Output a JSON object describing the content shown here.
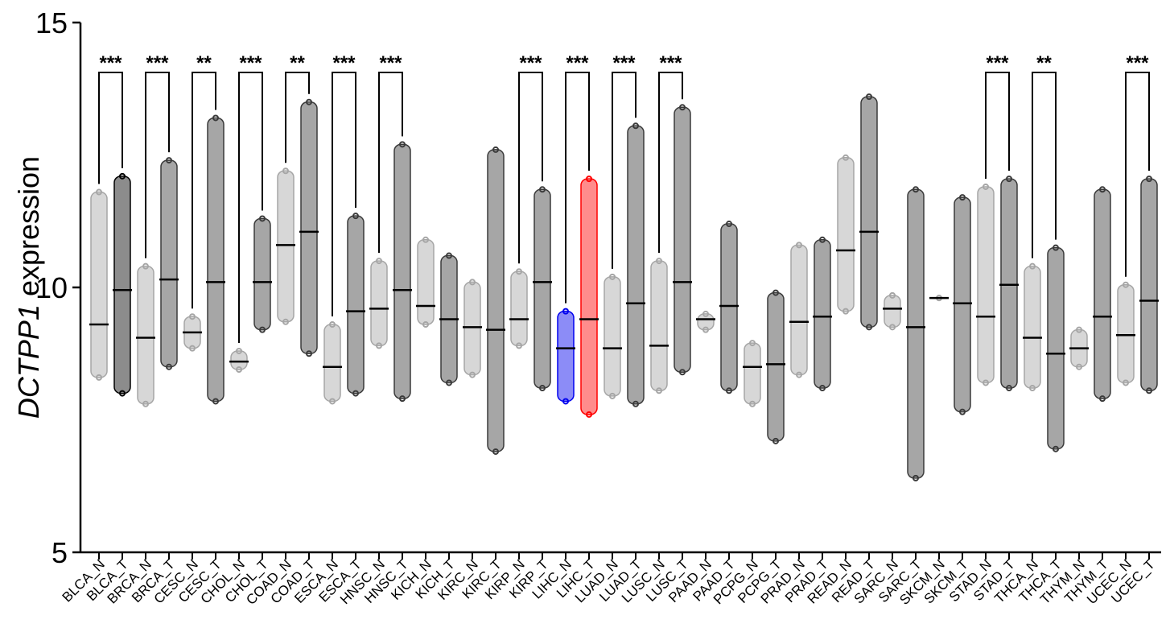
{
  "chart_data": {
    "type": "strip",
    "ylabel": [
      "DCTPP1",
      "expression"
    ],
    "categories": [
      "BLCA_N",
      "BLCA_T",
      "BRCA_N",
      "BRCA_T",
      "CESC_N",
      "CESC_T",
      "CHOL_N",
      "CHOL_T",
      "COAD_N",
      "COAD_T",
      "ESCA_N",
      "ESCA_T",
      "HNSC_N",
      "HNSC_T",
      "KICH_N",
      "KICH_T",
      "KIRC_N",
      "KIRC_T",
      "KIRP_N",
      "KIRP_T",
      "LIHC_N",
      "LIHC_T",
      "LUAD_N",
      "LUAD_T",
      "LUSC_N",
      "LUSC_T",
      "PAAD_N",
      "PAAD_T",
      "PCPG_N",
      "PCPG_T",
      "PRAD_N",
      "PRAD_T",
      "READ_N",
      "READ_T",
      "SARC_N",
      "SARC_T",
      "SKCM_N",
      "SKCM_T",
      "STAD_N",
      "STAD_T",
      "THCA_N",
      "THCA_T",
      "THYM_N",
      "THYM_T",
      "UCEC_N",
      "UCEC_T"
    ],
    "values": [
      9.3,
      9.95,
      9.05,
      10.15,
      9.15,
      10.1,
      8.6,
      10.1,
      10.8,
      11.05,
      8.5,
      9.55,
      9.6,
      9.95,
      9.65,
      9.4,
      9.25,
      9.2,
      9.4,
      10.1,
      8.85,
      9.4,
      8.85,
      9.7,
      8.9,
      10.1,
      9.4,
      9.65,
      8.5,
      8.55,
      9.35,
      9.45,
      10.7,
      11.05,
      9.6,
      9.25,
      9.8,
      9.7,
      9.45,
      10.05,
      9.05,
      8.75,
      8.85,
      9.45,
      9.1,
      9.75
    ],
    "mins": [
      8.3,
      8.0,
      7.8,
      8.5,
      8.85,
      7.85,
      8.45,
      9.2,
      9.35,
      8.75,
      7.85,
      8.0,
      8.9,
      7.9,
      9.3,
      8.2,
      8.35,
      6.9,
      8.9,
      8.1,
      7.85,
      7.6,
      7.95,
      7.8,
      8.05,
      8.4,
      9.2,
      8.05,
      7.8,
      7.1,
      8.35,
      8.1,
      9.55,
      9.25,
      9.25,
      6.4,
      9.8,
      7.65,
      8.2,
      8.1,
      8.1,
      6.95,
      8.5,
      7.9,
      8.2,
      8.05
    ],
    "maxs": [
      11.8,
      12.1,
      10.4,
      12.4,
      9.45,
      13.2,
      8.8,
      11.3,
      12.2,
      13.5,
      9.3,
      11.35,
      10.5,
      12.7,
      10.9,
      10.6,
      10.1,
      12.6,
      10.3,
      11.85,
      9.55,
      12.05,
      10.2,
      13.05,
      10.5,
      13.4,
      9.5,
      11.2,
      8.95,
      9.9,
      10.8,
      10.9,
      12.45,
      13.6,
      9.85,
      11.85,
      9.8,
      11.7,
      11.9,
      12.05,
      10.4,
      10.75,
      9.2,
      11.85,
      10.05,
      12.05
    ],
    "colors": [
      "#a6a6a6",
      "#000000",
      "#a6a6a6",
      "#3a3a3a",
      "#a6a6a6",
      "#3a3a3a",
      "#a6a6a6",
      "#3a3a3a",
      "#a6a6a6",
      "#3a3a3a",
      "#a6a6a6",
      "#3a3a3a",
      "#a6a6a6",
      "#3a3a3a",
      "#a6a6a6",
      "#3a3a3a",
      "#a6a6a6",
      "#3a3a3a",
      "#a6a6a6",
      "#3a3a3a",
      "#0000ee",
      "#ff0000",
      "#a6a6a6",
      "#3a3a3a",
      "#a6a6a6",
      "#3a3a3a",
      "#a6a6a6",
      "#3a3a3a",
      "#a6a6a6",
      "#3a3a3a",
      "#a6a6a6",
      "#3a3a3a",
      "#a6a6a6",
      "#3a3a3a",
      "#a6a6a6",
      "#3a3a3a",
      "#a6a6a6",
      "#3a3a3a",
      "#a6a6a6",
      "#3a3a3a",
      "#a6a6a6",
      "#3a3a3a",
      "#a6a6a6",
      "#3a3a3a",
      "#a6a6a6",
      "#3a3a3a"
    ],
    "annotations": [
      {
        "pair": [
          0,
          1
        ],
        "label": "***"
      },
      {
        "pair": [
          2,
          3
        ],
        "label": "***"
      },
      {
        "pair": [
          4,
          5
        ],
        "label": "**"
      },
      {
        "pair": [
          6,
          7
        ],
        "label": "***"
      },
      {
        "pair": [
          8,
          9
        ],
        "label": "**"
      },
      {
        "pair": [
          10,
          11
        ],
        "label": "***"
      },
      {
        "pair": [
          12,
          13
        ],
        "label": "***"
      },
      {
        "pair": [
          18,
          19
        ],
        "label": "***"
      },
      {
        "pair": [
          20,
          21
        ],
        "label": "***"
      },
      {
        "pair": [
          22,
          23
        ],
        "label": "***"
      },
      {
        "pair": [
          24,
          25
        ],
        "label": "***"
      },
      {
        "pair": [
          38,
          39
        ],
        "label": "***"
      },
      {
        "pair": [
          40,
          41
        ],
        "label": "**"
      },
      {
        "pair": [
          44,
          45
        ],
        "label": "***"
      }
    ],
    "ylim": [
      5,
      15
    ],
    "yticks": [
      5,
      10,
      15
    ]
  }
}
